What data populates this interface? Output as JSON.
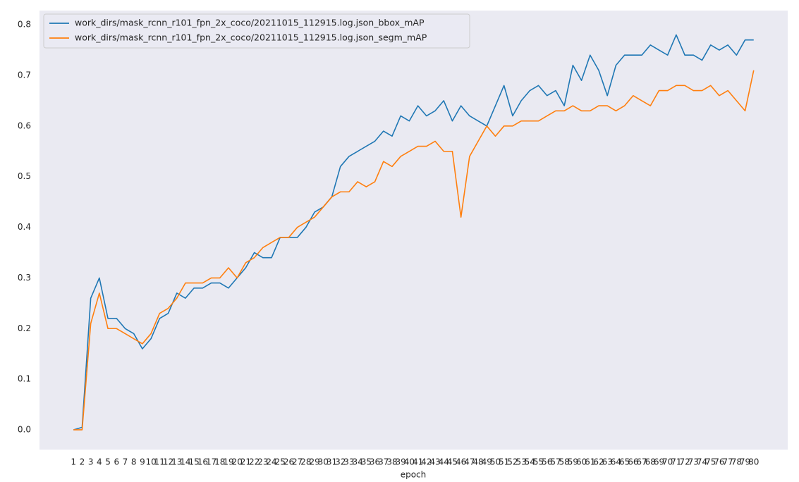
{
  "chart_data": {
    "type": "line",
    "x_label": "epoch",
    "x": [
      1,
      2,
      3,
      4,
      5,
      6,
      7,
      8,
      9,
      10,
      11,
      12,
      13,
      14,
      15,
      16,
      17,
      18,
      19,
      20,
      21,
      22,
      23,
      24,
      25,
      26,
      27,
      28,
      29,
      30,
      31,
      32,
      33,
      34,
      35,
      36,
      37,
      38,
      39,
      40,
      41,
      42,
      43,
      44,
      45,
      46,
      47,
      48,
      49,
      50,
      51,
      52,
      53,
      54,
      55,
      56,
      57,
      58,
      59,
      60,
      61,
      62,
      63,
      64,
      65,
      66,
      67,
      68,
      69,
      70,
      71,
      72,
      73,
      74,
      75,
      76,
      77,
      78,
      79,
      80
    ],
    "series": [
      {
        "name": "work_dirs/mask_rcnn_r101_fpn_2x_coco/20211015_112915.log.json_bbox_mAP",
        "color": "#1f77b4",
        "values": [
          0,
          0.005,
          0.26,
          0.3,
          0.22,
          0.22,
          0.2,
          0.19,
          0.16,
          0.18,
          0.22,
          0.23,
          0.27,
          0.26,
          0.28,
          0.28,
          0.29,
          0.29,
          0.28,
          0.3,
          0.32,
          0.35,
          0.34,
          0.34,
          0.38,
          0.38,
          0.38,
          0.4,
          0.43,
          0.44,
          0.46,
          0.52,
          0.54,
          0.55,
          0.56,
          0.57,
          0.59,
          0.58,
          0.62,
          0.61,
          0.64,
          0.62,
          0.63,
          0.65,
          0.61,
          0.64,
          0.62,
          0.61,
          0.6,
          0.64,
          0.68,
          0.62,
          0.65,
          0.67,
          0.68,
          0.66,
          0.67,
          0.64,
          0.72,
          0.69,
          0.74,
          0.71,
          0.66,
          0.72,
          0.74,
          0.74,
          0.74,
          0.76,
          0.75,
          0.74,
          0.78,
          0.74,
          0.74,
          0.73,
          0.76,
          0.75,
          0.76,
          0.74,
          0.77,
          0.77
        ]
      },
      {
        "name": "work_dirs/mask_rcnn_r101_fpn_2x_coco/20211015_112915.log.json_segm_mAP",
        "color": "#ff7f0e",
        "values": [
          0,
          0,
          0.21,
          0.27,
          0.2,
          0.2,
          0.19,
          0.18,
          0.17,
          0.19,
          0.23,
          0.24,
          0.26,
          0.29,
          0.29,
          0.29,
          0.3,
          0.3,
          0.32,
          0.3,
          0.33,
          0.34,
          0.36,
          0.37,
          0.38,
          0.38,
          0.4,
          0.41,
          0.42,
          0.44,
          0.46,
          0.47,
          0.47,
          0.49,
          0.48,
          0.49,
          0.53,
          0.52,
          0.54,
          0.55,
          0.56,
          0.56,
          0.57,
          0.55,
          0.55,
          0.42,
          0.54,
          0.57,
          0.6,
          0.58,
          0.6,
          0.6,
          0.61,
          0.61,
          0.61,
          0.62,
          0.63,
          0.63,
          0.64,
          0.63,
          0.63,
          0.64,
          0.64,
          0.63,
          0.64,
          0.66,
          0.65,
          0.64,
          0.67,
          0.67,
          0.68,
          0.68,
          0.67,
          0.67,
          0.68,
          0.66,
          0.67,
          0.65,
          0.63,
          0.71
        ]
      }
    ],
    "xlim": [
      -2.95,
      83.95
    ],
    "ylim": [
      -0.039,
      0.828
    ],
    "yticks": [
      {
        "value": 0,
        "label": "0.0"
      },
      0.1,
      0.2,
      0.3,
      0.4,
      0.5,
      0.6,
      0.7,
      0.8
    ],
    "grid": false,
    "legend": "upper-left",
    "background": "#eaeaf2"
  }
}
